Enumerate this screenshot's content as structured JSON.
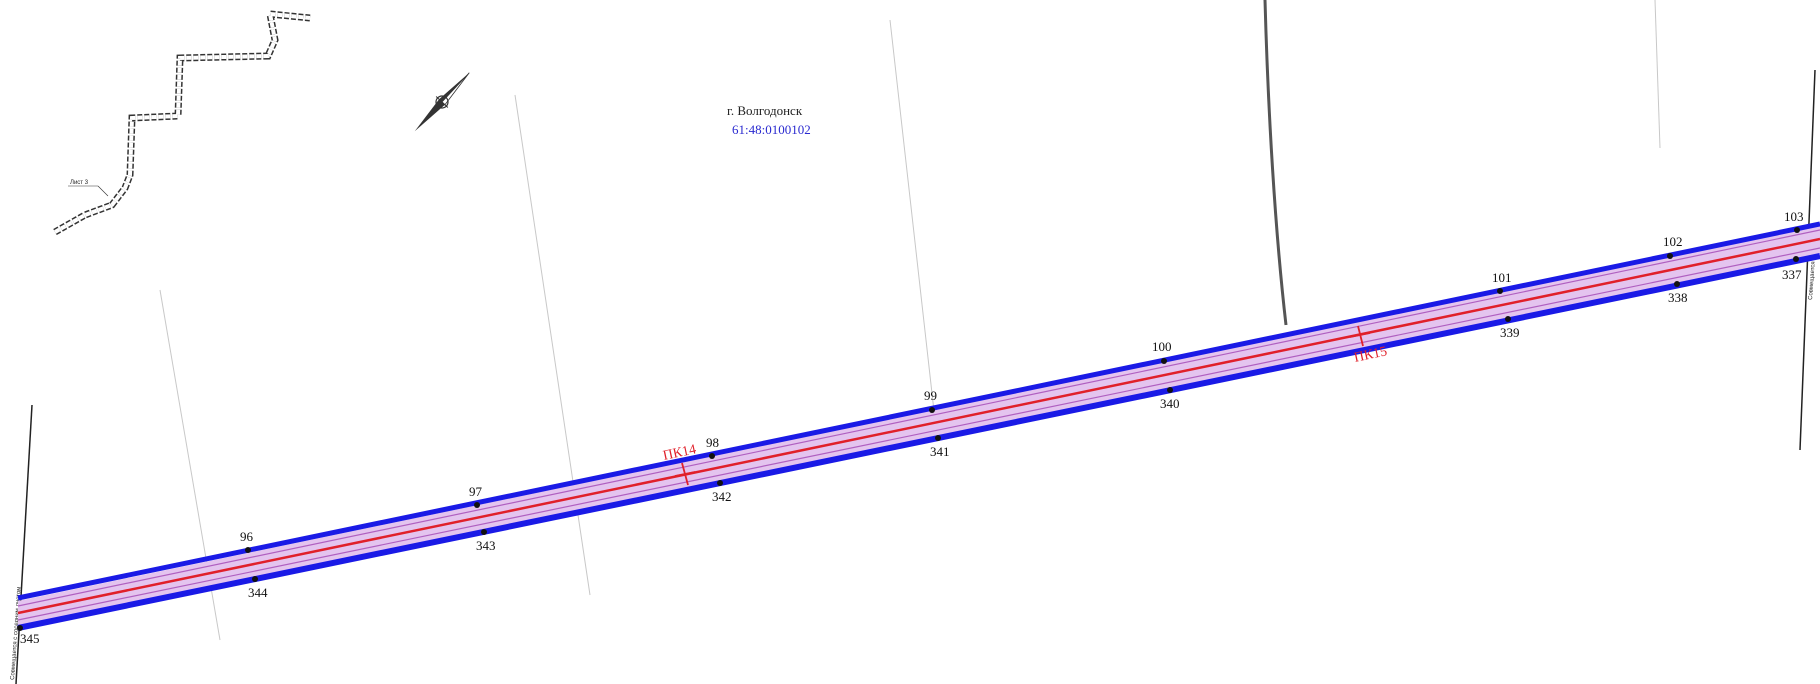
{
  "map": {
    "city": "г. Волгодонск",
    "cadastral_number": "61:48:0100102",
    "sheet_label": "Лист 3",
    "left_edge_label": "Совмещается с соседним листом",
    "right_edge_label": "Совмещается с листом 1",
    "picket_labels": [
      "ПК14",
      "ПК15"
    ],
    "north_points": [
      "96",
      "97",
      "98",
      "99",
      "100",
      "101",
      "102",
      "103"
    ],
    "south_points": [
      "345",
      "344",
      "343",
      "342",
      "341",
      "340",
      "339",
      "338",
      "337"
    ],
    "colors": {
      "boundary": "#1a1ae6",
      "zone_fill": "#d9b3e6",
      "axis": "#e0202a",
      "parcel_lines": "#cccccc",
      "cadastral_text": "#2a2ad0"
    }
  }
}
